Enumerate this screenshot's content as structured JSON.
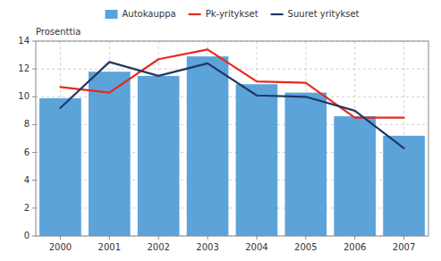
{
  "chart_data": {
    "type": "bar",
    "ylabel": "Prosenttia",
    "categories": [
      "2000",
      "2001",
      "2002",
      "2003",
      "2004",
      "2005",
      "2006",
      "2007"
    ],
    "series": [
      {
        "name": "Autokauppa",
        "type": "bar",
        "color": "#5ba3d9",
        "values": [
          9.9,
          11.8,
          11.5,
          12.9,
          10.9,
          10.3,
          8.6,
          7.2
        ]
      },
      {
        "name": "Pk-yritykset",
        "type": "line",
        "color": "#e8291c",
        "values": [
          10.7,
          10.3,
          12.7,
          13.4,
          11.1,
          11.0,
          8.5,
          8.5
        ]
      },
      {
        "name": "Suuret yritykset",
        "type": "line",
        "color": "#1f3864",
        "values": [
          9.2,
          12.5,
          11.5,
          12.4,
          10.1,
          10.0,
          9.0,
          6.3
        ]
      }
    ],
    "ylim": [
      0,
      14
    ],
    "yticks": [
      0,
      2,
      4,
      6,
      8,
      10,
      12,
      14
    ],
    "grid": true,
    "legend": "top"
  }
}
